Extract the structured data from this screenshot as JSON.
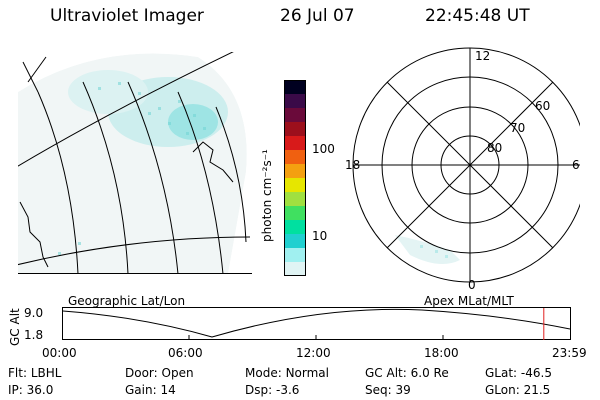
{
  "header": {
    "title": "Ultraviolet Imager",
    "date": "26 Jul 07",
    "time": "22:45:48 UT"
  },
  "panels": {
    "left_label": "Geographic Lat/Lon",
    "right_label": "Apex MLat/MLT"
  },
  "colorbar": {
    "unit_label": "photon cm⁻²s⁻¹",
    "ticks": [
      "100",
      "10"
    ],
    "colors": [
      "#000020",
      "#3a0a48",
      "#6a0a3a",
      "#9c0f1c",
      "#d81a1a",
      "#f06010",
      "#f4a010",
      "#e6e600",
      "#a0e040",
      "#40e060",
      "#00e0a0",
      "#20d0d0",
      "#a0f0f0",
      "#e0f4f4"
    ]
  },
  "polar": {
    "mlt_labels": [
      "12",
      "18",
      "6",
      "0"
    ],
    "mlat_labels": [
      "60",
      "70",
      "80"
    ]
  },
  "timeline": {
    "ylabel": "GC Alt",
    "y_ticks": [
      "9.0",
      "1.8"
    ],
    "x_ticks": [
      "00:00",
      "06:00",
      "12:00",
      "18:00",
      "23:59"
    ],
    "current_marker_hour": 22.76
  },
  "footer": [
    [
      {
        "label": "Flt:",
        "value": "LBHL"
      },
      {
        "label": "Door:",
        "value": "Open"
      },
      {
        "label": "Mode:",
        "value": "Normal"
      },
      {
        "label": "GC Alt:",
        "value": "6.0 Re"
      },
      {
        "label": "GLat:",
        "value": "-46.5"
      }
    ],
    [
      {
        "label": "IP:",
        "value": "36.0"
      },
      {
        "label": "Gain:",
        "value": "14"
      },
      {
        "label": "Dsp:",
        "value": "-3.6"
      },
      {
        "label": "Seq:",
        "value": "39"
      },
      {
        "label": "GLon:",
        "value": "21.5"
      }
    ]
  ]
}
